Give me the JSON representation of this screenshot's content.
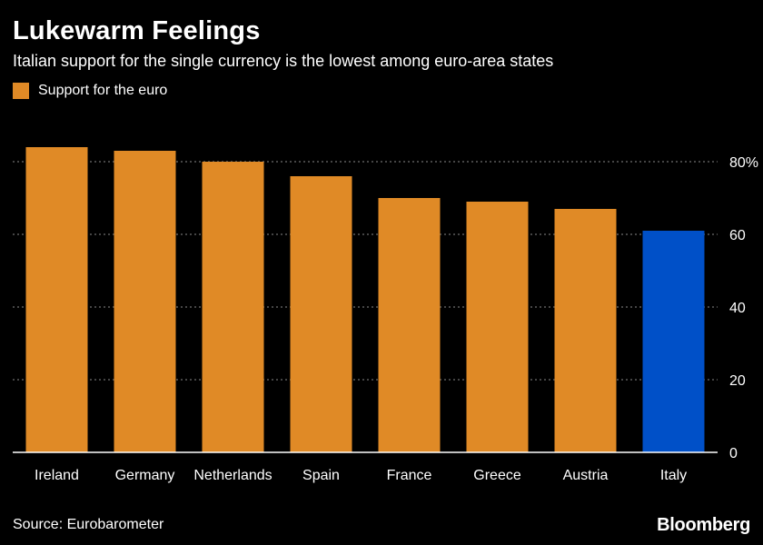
{
  "header": {
    "title": "Lukewarm Feelings",
    "subtitle": "Italian support for the single currency is the lowest among euro-area states"
  },
  "legend": {
    "label": "Support for the euro",
    "color": "#e08a26"
  },
  "footer": {
    "source": "Source: Eurobarometer",
    "brand": "Bloomberg"
  },
  "colors": {
    "bar": "#e08a26",
    "highlight": "#0050c8",
    "grid": "#8a8a8a",
    "axis": "#ffffff",
    "text": "#ffffff"
  },
  "chart_data": {
    "type": "bar",
    "categories": [
      "Ireland",
      "Germany",
      "Netherlands",
      "Spain",
      "France",
      "Greece",
      "Austria",
      "Italy"
    ],
    "series": [
      {
        "name": "Support for the euro",
        "values": [
          84,
          83,
          80,
          76,
          70,
          69,
          67,
          61
        ]
      }
    ],
    "highlight_category": "Italy",
    "ylim": [
      0,
      80
    ],
    "yticks": [
      0,
      20,
      40,
      60,
      80
    ],
    "ytick_labels": [
      "0",
      "20",
      "40",
      "60",
      "80%"
    ],
    "y_axis_position": "right",
    "grid": true,
    "legend_position": "top-left"
  }
}
